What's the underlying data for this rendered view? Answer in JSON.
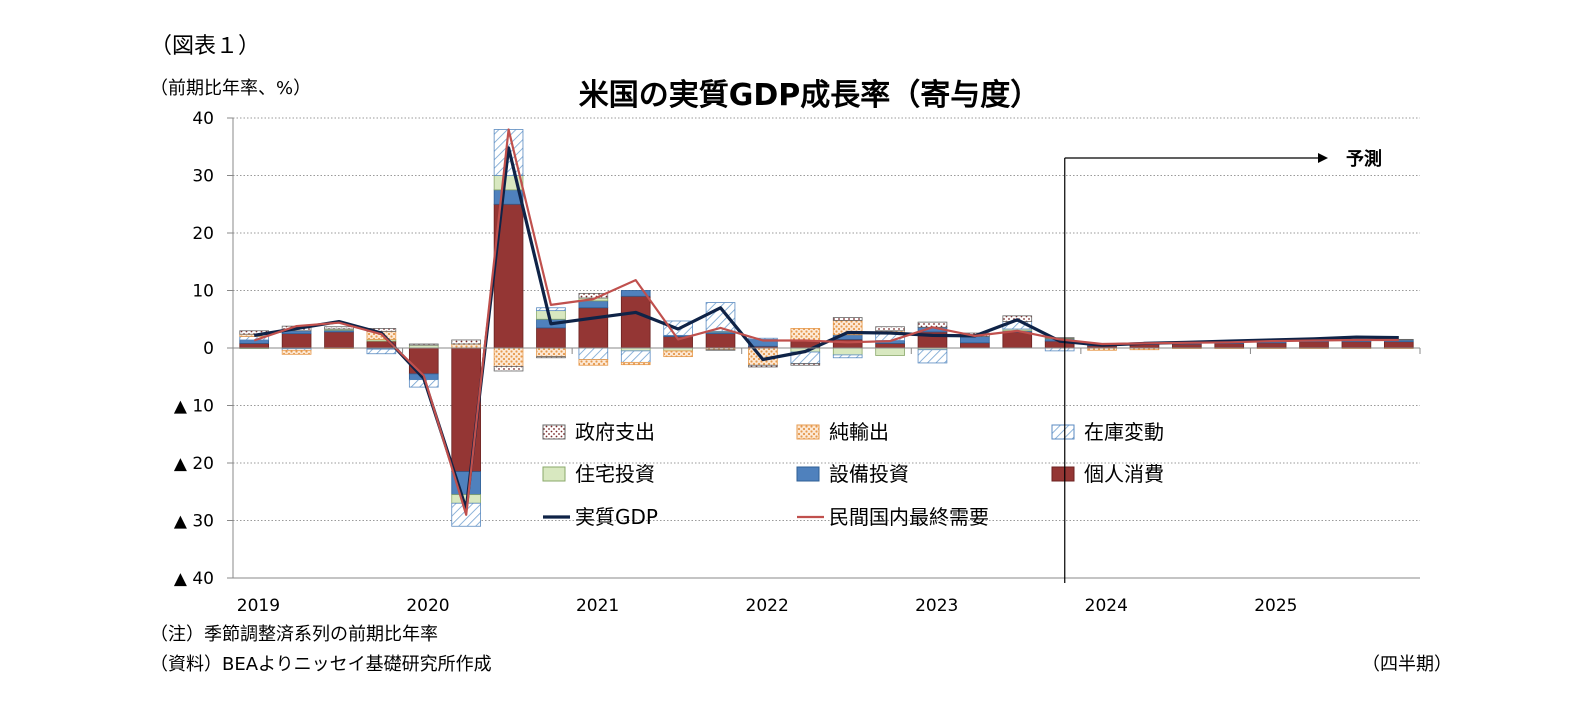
{
  "figure_label": "（図表１）",
  "unit_label": "（前期比年率、%）",
  "note": "（注）季節調整済系列の前期比年率",
  "source": "（資料）BEAよりニッセイ基礎研究所作成",
  "frequency": "（四半期）",
  "forecast_label": "予測",
  "colors": {
    "government": "#ffffff",
    "net_exports": "#f5c99a",
    "inventories": "#dce9f5",
    "residential": "#d8e8c0",
    "equipment": "#4f81bd",
    "consumption": "#943634",
    "gdp_line": "#0f2347",
    "domestic_line": "#c0504d"
  },
  "chart_data": {
    "type": "bar",
    "title": "米国の実質GDP成長率（寄与度）",
    "xlabel": "",
    "ylabel": "（前期比年率、%）",
    "ylim": [
      -40,
      40
    ],
    "y_ticks": [
      40,
      30,
      20,
      10,
      0,
      -10,
      -20,
      -30,
      -40
    ],
    "y_tick_labels": [
      "40",
      "30",
      "20",
      "10",
      "0",
      "▲ 10",
      "▲ 20",
      "▲ 30",
      "▲ 40"
    ],
    "year_labels": [
      "2019",
      "2020",
      "2021",
      "2022",
      "2023",
      "2024",
      "2025"
    ],
    "categories": [
      "2019Q1",
      "2019Q2",
      "2019Q3",
      "2019Q4",
      "2020Q1",
      "2020Q2",
      "2020Q3",
      "2020Q4",
      "2021Q1",
      "2021Q2",
      "2021Q3",
      "2021Q4",
      "2022Q1",
      "2022Q2",
      "2022Q3",
      "2022Q4",
      "2023Q1",
      "2023Q2",
      "2023Q3",
      "2023Q4",
      "2024Q1",
      "2024Q2",
      "2024Q3",
      "2024Q4",
      "2025Q1",
      "2025Q2",
      "2025Q3",
      "2025Q4"
    ],
    "forecast_start": "2023Q4",
    "series": [
      {
        "name": "個人消費",
        "key": "consumption",
        "kind": "bar",
        "values": [
          0.8,
          2.5,
          2.8,
          1.2,
          -4.5,
          -21.5,
          25,
          3.5,
          7,
          9,
          2,
          2.5,
          0.3,
          1.2,
          1.5,
          0.8,
          2.8,
          0.9,
          2.8,
          1.2,
          0.4,
          0.6,
          0.7,
          0.8,
          0.9,
          1.1,
          1.1,
          1.1
        ]
      },
      {
        "name": "設備投資",
        "key": "equipment",
        "kind": "bar",
        "values": [
          0.6,
          0.5,
          0.3,
          -0.2,
          -1,
          -4,
          2.5,
          1.5,
          1.2,
          1,
          0.2,
          0.3,
          1.2,
          0,
          0.8,
          0.5,
          0.8,
          1.1,
          0.2,
          0.4,
          0.3,
          0.2,
          0.2,
          0.2,
          0.3,
          0.3,
          0.3,
          0.3
        ]
      },
      {
        "name": "住宅投資",
        "key": "residential",
        "kind": "bar",
        "values": [
          -0.1,
          -0.1,
          0.2,
          0.3,
          0.5,
          -1.5,
          2.5,
          1.5,
          0.5,
          -0.5,
          -0.5,
          0.1,
          0,
          -0.7,
          -1.2,
          -1.3,
          -0.3,
          0,
          0.3,
          0.1,
          0,
          0,
          0,
          0,
          0,
          0,
          0,
          0
        ]
      },
      {
        "name": "在庫変動",
        "key": "inventories",
        "kind": "bar",
        "values": [
          0.6,
          -0.3,
          0,
          -0.8,
          -1.3,
          -4,
          8,
          0.5,
          -2,
          -2,
          2.5,
          5,
          0.2,
          -2,
          -0.5,
          1.3,
          -2.3,
          0,
          1.3,
          -0.5,
          0,
          0,
          0,
          0,
          0,
          0,
          0,
          0
        ]
      },
      {
        "name": "純輸出",
        "key": "net_exports",
        "kind": "bar",
        "values": [
          0.4,
          -0.7,
          -0.1,
          1.4,
          0,
          0.7,
          -3.2,
          -1.5,
          -1,
          -0.4,
          -1,
          -0.3,
          -3,
          2.2,
          2.5,
          0.4,
          0,
          0,
          0,
          0,
          -0.4,
          -0.3,
          -0.1,
          -0.1,
          -0.1,
          -0.1,
          -0.1,
          -0.1
        ]
      },
      {
        "name": "政府支出",
        "key": "government",
        "kind": "bar",
        "values": [
          0.6,
          0.8,
          0.4,
          0.5,
          0.2,
          0.7,
          -0.8,
          -0.2,
          0.8,
          0,
          0,
          -0.1,
          -0.3,
          -0.3,
          0.5,
          0.7,
          0.9,
          0.6,
          1,
          0.1,
          0.1,
          0.1,
          0.1,
          0.1,
          0.1,
          0.1,
          0.1,
          0.1
        ]
      },
      {
        "name": "実質GDP",
        "key": "gdp_line",
        "kind": "line",
        "values": [
          2.2,
          3.4,
          4.6,
          2.6,
          -5.3,
          -28,
          34.8,
          4.2,
          5.2,
          6.2,
          3.3,
          7,
          -2,
          -0.6,
          2.7,
          2.6,
          2.2,
          2.1,
          4.9,
          1.2,
          0.5,
          0.8,
          1,
          1.2,
          1.4,
          1.6,
          1.9,
          1.8
        ]
      },
      {
        "name": "民間国内最終需要",
        "key": "domestic_line",
        "kind": "line",
        "values": [
          1.3,
          3.8,
          4.4,
          2.4,
          -4.8,
          -29,
          38,
          7.5,
          8.5,
          11.8,
          1.5,
          3.5,
          1.3,
          1.3,
          1,
          1.2,
          3.6,
          2.1,
          3,
          1.5,
          0.7,
          0.8,
          0.9,
          1,
          1.2,
          1.3,
          1.4,
          1.4
        ]
      }
    ],
    "legend": {
      "placement": "inside-bottom",
      "columns": 3
    },
    "grid": true
  }
}
